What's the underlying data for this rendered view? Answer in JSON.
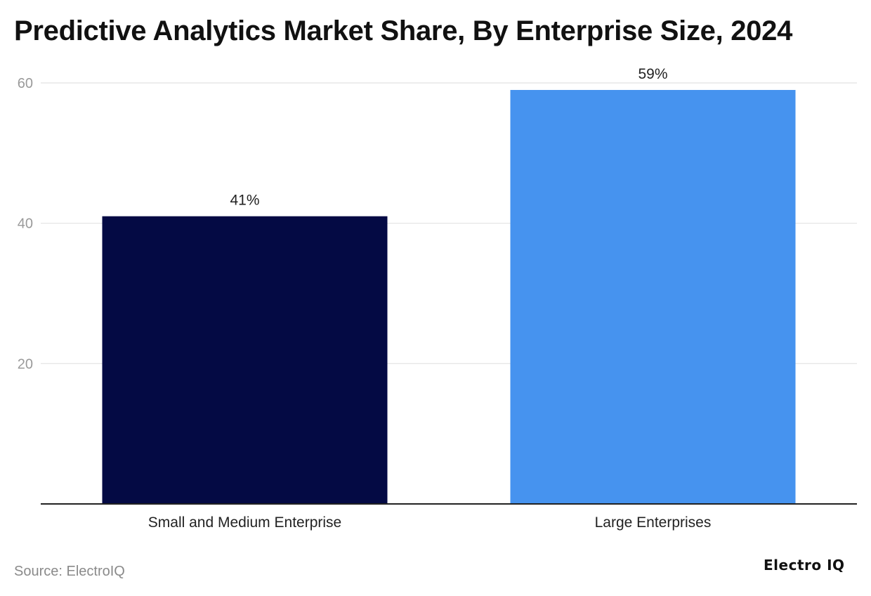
{
  "chart_data": {
    "type": "bar",
    "title": "Predictive Analytics Market Share, By Enterprise Size, 2024",
    "categories": [
      "Small and Medium Enterprise",
      "Large Enterprises"
    ],
    "values": [
      41,
      59
    ],
    "data_labels": [
      "41%",
      "59%"
    ],
    "bar_colors": [
      "#040a44",
      "#4693ef"
    ],
    "y_ticks": [
      20,
      40,
      60
    ],
    "ylim": [
      0,
      60
    ],
    "grid": true,
    "xlabel": "",
    "ylabel": ""
  },
  "footer": {
    "source": "Source: ElectroIQ",
    "brand": "Electro IQ"
  }
}
